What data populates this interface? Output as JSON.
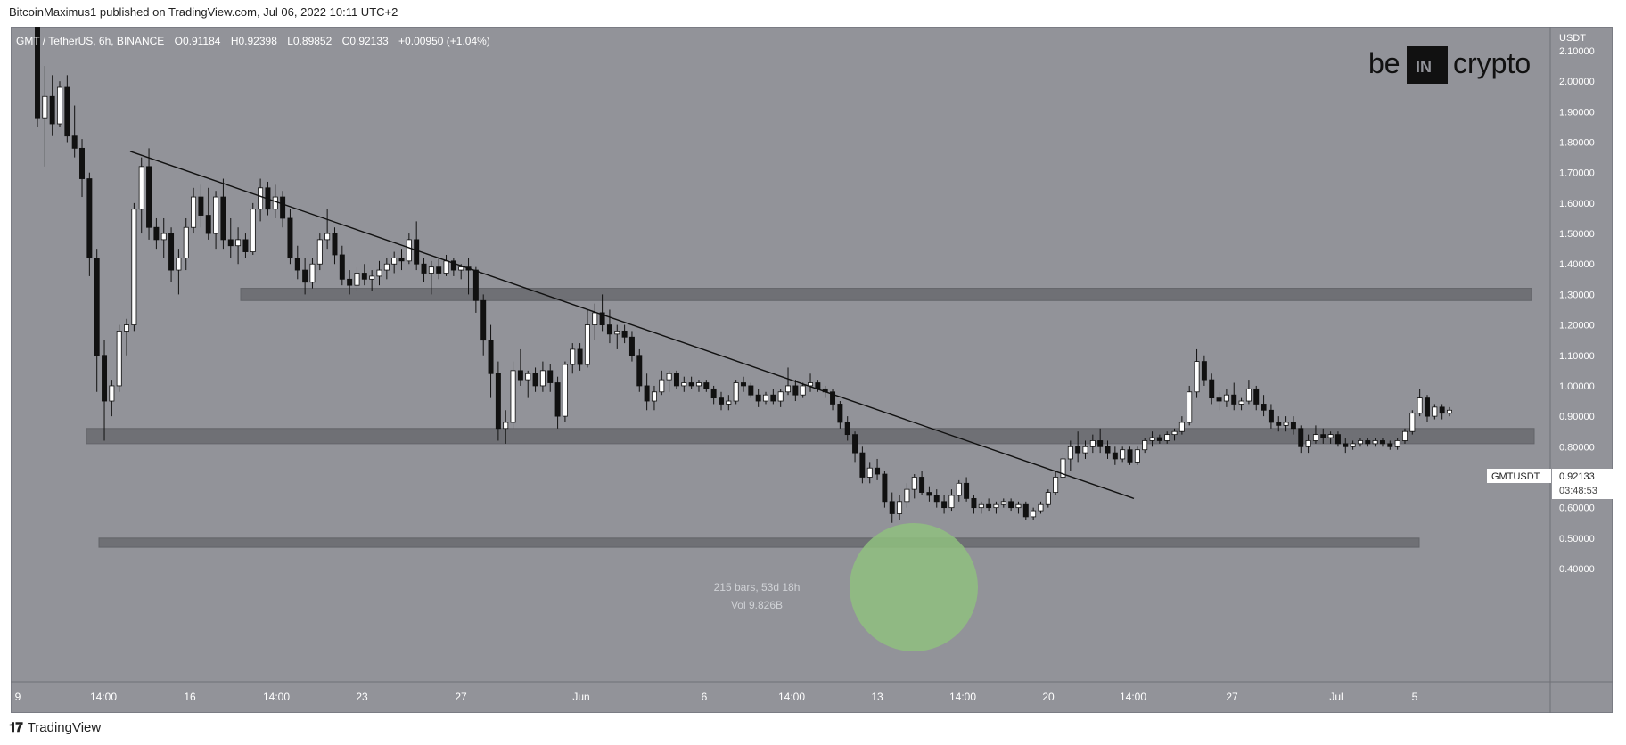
{
  "header": {
    "published": "BitcoinMaximus1 published on TradingView.com, Jul 06, 2022 10:11 UTC+2"
  },
  "footer": {
    "brand": "TradingView"
  },
  "symbol_info": {
    "pair": "GMT / TetherUS, 6h, BINANCE",
    "o_label": "O",
    "o": "0.91184",
    "h_label": "H",
    "h": "0.92398",
    "l_label": "L",
    "l": "0.89852",
    "c_label": "C",
    "c": "0.92133",
    "change": "+0.00950 (+1.04%)"
  },
  "watermark": {
    "left": "be",
    "middle": "IN",
    "right": "crypto"
  },
  "price_tag": {
    "symbol": "GMTUSDT",
    "price": "0.92133",
    "countdown": "03:48:53"
  },
  "measure": {
    "bars": "215 bars, 53d 18h",
    "vol": "Vol 9.826B"
  },
  "colors": {
    "background": "#929399",
    "bull": "#ffffff",
    "bear": "#111111",
    "zone": "#6c6d72",
    "highlight": "#8fbf7f"
  },
  "chart_data": {
    "type": "candlestick",
    "currency_label": "USDT",
    "y_ticks": [
      "2.10000",
      "2.00000",
      "1.90000",
      "1.80000",
      "1.70000",
      "1.60000",
      "1.50000",
      "1.40000",
      "1.30000",
      "1.20000",
      "1.10000",
      "1.00000",
      "0.90000",
      "0.80000",
      "0.70000",
      "0.60000",
      "0.50000",
      "0.40000"
    ],
    "ylim": [
      0.36,
      2.18
    ],
    "x_ticks": [
      "9",
      "14:00",
      "16",
      "14:00",
      "23",
      "27",
      "Jun",
      "6",
      "14:00",
      "13",
      "14:00",
      "20",
      "14:00",
      "27",
      "Jul",
      "5"
    ],
    "candles": [
      [
        2.18,
        2.2,
        1.85,
        1.88
      ],
      [
        1.88,
        2.05,
        1.72,
        1.95
      ],
      [
        1.95,
        2.02,
        1.82,
        1.86
      ],
      [
        1.86,
        2.0,
        1.85,
        1.98
      ],
      [
        1.98,
        2.02,
        1.8,
        1.82
      ],
      [
        1.82,
        1.92,
        1.75,
        1.78
      ],
      [
        1.78,
        1.81,
        1.62,
        1.68
      ],
      [
        1.68,
        1.7,
        1.36,
        1.42
      ],
      [
        1.42,
        1.45,
        0.98,
        1.1
      ],
      [
        1.1,
        1.15,
        0.82,
        0.95
      ],
      [
        0.95,
        1.02,
        0.9,
        1.0
      ],
      [
        1.0,
        1.2,
        0.98,
        1.18
      ],
      [
        1.18,
        1.22,
        1.1,
        1.2
      ],
      [
        1.2,
        1.6,
        1.18,
        1.58
      ],
      [
        1.58,
        1.75,
        1.5,
        1.72
      ],
      [
        1.72,
        1.78,
        1.48,
        1.52
      ],
      [
        1.52,
        1.55,
        1.45,
        1.48
      ],
      [
        1.48,
        1.55,
        1.42,
        1.5
      ],
      [
        1.5,
        1.52,
        1.34,
        1.38
      ],
      [
        1.38,
        1.45,
        1.3,
        1.42
      ],
      [
        1.42,
        1.55,
        1.38,
        1.52
      ],
      [
        1.52,
        1.65,
        1.5,
        1.62
      ],
      [
        1.62,
        1.66,
        1.52,
        1.56
      ],
      [
        1.56,
        1.65,
        1.48,
        1.5
      ],
      [
        1.5,
        1.64,
        1.45,
        1.62
      ],
      [
        1.62,
        1.68,
        1.45,
        1.48
      ],
      [
        1.48,
        1.55,
        1.42,
        1.46
      ],
      [
        1.46,
        1.52,
        1.4,
        1.48
      ],
      [
        1.48,
        1.5,
        1.42,
        1.44
      ],
      [
        1.44,
        1.6,
        1.43,
        1.58
      ],
      [
        1.58,
        1.68,
        1.54,
        1.65
      ],
      [
        1.65,
        1.67,
        1.56,
        1.58
      ],
      [
        1.58,
        1.66,
        1.55,
        1.62
      ],
      [
        1.62,
        1.64,
        1.52,
        1.55
      ],
      [
        1.55,
        1.58,
        1.4,
        1.42
      ],
      [
        1.42,
        1.46,
        1.35,
        1.38
      ],
      [
        1.38,
        1.42,
        1.3,
        1.34
      ],
      [
        1.34,
        1.42,
        1.32,
        1.4
      ],
      [
        1.4,
        1.5,
        1.38,
        1.48
      ],
      [
        1.48,
        1.58,
        1.45,
        1.5
      ],
      [
        1.5,
        1.52,
        1.4,
        1.43
      ],
      [
        1.43,
        1.46,
        1.33,
        1.35
      ],
      [
        1.35,
        1.38,
        1.3,
        1.33
      ],
      [
        1.33,
        1.39,
        1.31,
        1.37
      ],
      [
        1.37,
        1.4,
        1.33,
        1.35
      ],
      [
        1.35,
        1.38,
        1.31,
        1.36
      ],
      [
        1.36,
        1.41,
        1.33,
        1.38
      ],
      [
        1.38,
        1.42,
        1.35,
        1.4
      ],
      [
        1.4,
        1.44,
        1.37,
        1.42
      ],
      [
        1.42,
        1.45,
        1.38,
        1.41
      ],
      [
        1.41,
        1.5,
        1.4,
        1.48
      ],
      [
        1.48,
        1.54,
        1.38,
        1.4
      ],
      [
        1.4,
        1.42,
        1.34,
        1.37
      ],
      [
        1.37,
        1.41,
        1.3,
        1.39
      ],
      [
        1.39,
        1.42,
        1.35,
        1.37
      ],
      [
        1.37,
        1.43,
        1.36,
        1.41
      ],
      [
        1.41,
        1.42,
        1.36,
        1.38
      ],
      [
        1.38,
        1.4,
        1.35,
        1.39
      ],
      [
        1.39,
        1.42,
        1.3,
        1.38
      ],
      [
        1.38,
        1.39,
        1.24,
        1.28
      ],
      [
        1.28,
        1.3,
        1.1,
        1.15
      ],
      [
        1.15,
        1.2,
        0.96,
        1.04
      ],
      [
        1.04,
        1.08,
        0.82,
        0.86
      ],
      [
        0.86,
        0.92,
        0.81,
        0.88
      ],
      [
        0.88,
        1.08,
        0.86,
        1.05
      ],
      [
        1.05,
        1.12,
        1.0,
        1.02
      ],
      [
        1.02,
        1.05,
        0.96,
        1.04
      ],
      [
        1.04,
        1.06,
        0.98,
        1.0
      ],
      [
        1.0,
        1.08,
        0.98,
        1.05
      ],
      [
        1.05,
        1.07,
        0.98,
        1.01
      ],
      [
        1.01,
        1.03,
        0.86,
        0.9
      ],
      [
        0.9,
        1.08,
        0.88,
        1.07
      ],
      [
        1.07,
        1.14,
        1.04,
        1.12
      ],
      [
        1.12,
        1.14,
        1.05,
        1.07
      ],
      [
        1.07,
        1.25,
        1.06,
        1.2
      ],
      [
        1.2,
        1.27,
        1.15,
        1.24
      ],
      [
        1.24,
        1.3,
        1.18,
        1.2
      ],
      [
        1.2,
        1.25,
        1.14,
        1.17
      ],
      [
        1.17,
        1.2,
        1.12,
        1.18
      ],
      [
        1.18,
        1.2,
        1.14,
        1.16
      ],
      [
        1.16,
        1.18,
        1.08,
        1.1
      ],
      [
        1.1,
        1.12,
        0.98,
        1.0
      ],
      [
        1.0,
        1.04,
        0.92,
        0.95
      ],
      [
        0.95,
        1.0,
        0.92,
        0.98
      ],
      [
        0.98,
        1.05,
        0.97,
        1.02
      ],
      [
        1.02,
        1.05,
        0.98,
        1.04
      ],
      [
        1.04,
        1.05,
        0.99,
        1.0
      ],
      [
        1.0,
        1.03,
        0.98,
        1.01
      ],
      [
        1.01,
        1.03,
        0.99,
        1.0
      ],
      [
        1.0,
        1.02,
        0.98,
        1.01
      ],
      [
        1.01,
        1.02,
        0.98,
        0.99
      ],
      [
        0.99,
        1.0,
        0.94,
        0.96
      ],
      [
        0.96,
        0.98,
        0.92,
        0.94
      ],
      [
        0.94,
        0.97,
        0.92,
        0.95
      ],
      [
        0.95,
        1.02,
        0.94,
        1.01
      ],
      [
        1.01,
        1.03,
        0.98,
        1.0
      ],
      [
        1.0,
        1.01,
        0.96,
        0.97
      ],
      [
        0.97,
        0.99,
        0.93,
        0.95
      ],
      [
        0.95,
        0.98,
        0.94,
        0.97
      ],
      [
        0.97,
        0.99,
        0.94,
        0.95
      ],
      [
        0.95,
        0.99,
        0.93,
        0.98
      ],
      [
        0.98,
        1.06,
        0.97,
        1.0
      ],
      [
        1.0,
        1.02,
        0.95,
        0.97
      ],
      [
        0.97,
        1.01,
        0.96,
        1.0
      ],
      [
        1.0,
        1.04,
        0.98,
        1.01
      ],
      [
        1.01,
        1.02,
        0.98,
        0.99
      ],
      [
        0.99,
        1.0,
        0.96,
        0.98
      ],
      [
        0.98,
        0.99,
        0.92,
        0.94
      ],
      [
        0.94,
        0.95,
        0.86,
        0.88
      ],
      [
        0.88,
        0.9,
        0.82,
        0.84
      ],
      [
        0.84,
        0.85,
        0.75,
        0.78
      ],
      [
        0.78,
        0.8,
        0.68,
        0.7
      ],
      [
        0.7,
        0.75,
        0.68,
        0.73
      ],
      [
        0.73,
        0.76,
        0.69,
        0.71
      ],
      [
        0.71,
        0.72,
        0.6,
        0.62
      ],
      [
        0.62,
        0.65,
        0.55,
        0.58
      ],
      [
        0.58,
        0.64,
        0.56,
        0.62
      ],
      [
        0.62,
        0.68,
        0.6,
        0.66
      ],
      [
        0.66,
        0.71,
        0.63,
        0.7
      ],
      [
        0.7,
        0.72,
        0.64,
        0.65
      ],
      [
        0.65,
        0.67,
        0.62,
        0.64
      ],
      [
        0.64,
        0.66,
        0.6,
        0.62
      ],
      [
        0.62,
        0.64,
        0.58,
        0.6
      ],
      [
        0.6,
        0.66,
        0.59,
        0.64
      ],
      [
        0.64,
        0.69,
        0.62,
        0.68
      ],
      [
        0.68,
        0.7,
        0.62,
        0.63
      ],
      [
        0.63,
        0.64,
        0.58,
        0.6
      ],
      [
        0.6,
        0.62,
        0.58,
        0.61
      ],
      [
        0.61,
        0.63,
        0.59,
        0.6
      ],
      [
        0.6,
        0.62,
        0.58,
        0.61
      ],
      [
        0.61,
        0.63,
        0.6,
        0.62
      ],
      [
        0.62,
        0.63,
        0.59,
        0.6
      ],
      [
        0.6,
        0.62,
        0.58,
        0.61
      ],
      [
        0.61,
        0.62,
        0.56,
        0.57
      ],
      [
        0.57,
        0.6,
        0.56,
        0.59
      ],
      [
        0.59,
        0.62,
        0.58,
        0.61
      ],
      [
        0.61,
        0.66,
        0.6,
        0.65
      ],
      [
        0.65,
        0.72,
        0.64,
        0.7
      ],
      [
        0.7,
        0.78,
        0.69,
        0.76
      ],
      [
        0.76,
        0.82,
        0.72,
        0.8
      ],
      [
        0.8,
        0.85,
        0.75,
        0.78
      ],
      [
        0.78,
        0.82,
        0.76,
        0.8
      ],
      [
        0.8,
        0.84,
        0.78,
        0.82
      ],
      [
        0.82,
        0.86,
        0.78,
        0.8
      ],
      [
        0.8,
        0.82,
        0.76,
        0.78
      ],
      [
        0.78,
        0.8,
        0.74,
        0.76
      ],
      [
        0.76,
        0.8,
        0.75,
        0.79
      ],
      [
        0.79,
        0.8,
        0.74,
        0.75
      ],
      [
        0.75,
        0.8,
        0.74,
        0.79
      ],
      [
        0.79,
        0.83,
        0.78,
        0.82
      ],
      [
        0.82,
        0.85,
        0.8,
        0.83
      ],
      [
        0.83,
        0.84,
        0.81,
        0.82
      ],
      [
        0.82,
        0.85,
        0.81,
        0.84
      ],
      [
        0.84,
        0.86,
        0.82,
        0.85
      ],
      [
        0.85,
        0.9,
        0.84,
        0.88
      ],
      [
        0.88,
        1.0,
        0.87,
        0.98
      ],
      [
        0.98,
        1.12,
        0.96,
        1.08
      ],
      [
        1.08,
        1.1,
        1.0,
        1.02
      ],
      [
        1.02,
        1.04,
        0.94,
        0.96
      ],
      [
        0.96,
        0.98,
        0.92,
        0.95
      ],
      [
        0.95,
        0.99,
        0.93,
        0.97
      ],
      [
        0.97,
        1.01,
        0.92,
        0.94
      ],
      [
        0.94,
        0.96,
        0.92,
        0.95
      ],
      [
        0.95,
        1.02,
        0.94,
        0.99
      ],
      [
        0.99,
        1.0,
        0.92,
        0.94
      ],
      [
        0.94,
        0.97,
        0.9,
        0.92
      ],
      [
        0.92,
        0.94,
        0.86,
        0.88
      ],
      [
        0.88,
        0.9,
        0.85,
        0.87
      ],
      [
        0.87,
        0.9,
        0.85,
        0.88
      ],
      [
        0.88,
        0.9,
        0.84,
        0.86
      ],
      [
        0.86,
        0.87,
        0.78,
        0.8
      ],
      [
        0.8,
        0.84,
        0.78,
        0.82
      ],
      [
        0.82,
        0.87,
        0.81,
        0.84
      ],
      [
        0.84,
        0.86,
        0.81,
        0.83
      ],
      [
        0.83,
        0.85,
        0.81,
        0.84
      ],
      [
        0.84,
        0.85,
        0.8,
        0.81
      ],
      [
        0.81,
        0.83,
        0.78,
        0.8
      ],
      [
        0.8,
        0.82,
        0.79,
        0.81
      ],
      [
        0.81,
        0.83,
        0.8,
        0.82
      ],
      [
        0.82,
        0.83,
        0.8,
        0.81
      ],
      [
        0.81,
        0.83,
        0.8,
        0.82
      ],
      [
        0.82,
        0.83,
        0.8,
        0.81
      ],
      [
        0.81,
        0.82,
        0.79,
        0.8
      ],
      [
        0.8,
        0.83,
        0.79,
        0.82
      ],
      [
        0.82,
        0.86,
        0.81,
        0.85
      ],
      [
        0.85,
        0.92,
        0.84,
        0.91
      ],
      [
        0.91,
        0.99,
        0.9,
        0.96
      ],
      [
        0.96,
        0.97,
        0.88,
        0.9
      ],
      [
        0.9,
        0.94,
        0.89,
        0.93
      ],
      [
        0.93,
        0.94,
        0.89,
        0.91
      ],
      [
        0.91,
        0.93,
        0.9,
        0.92
      ]
    ],
    "trendline": {
      "from": [
        1.77
      ],
      "to": [
        0.63
      ]
    },
    "zones": [
      {
        "name": "resistance",
        "y_low": 1.28,
        "y_high": 1.32
      },
      {
        "name": "support",
        "y_low": 0.81,
        "y_high": 0.86
      },
      {
        "name": "low",
        "y_low": 0.47,
        "y_high": 0.5
      }
    ],
    "legend": "none",
    "grid": false
  }
}
